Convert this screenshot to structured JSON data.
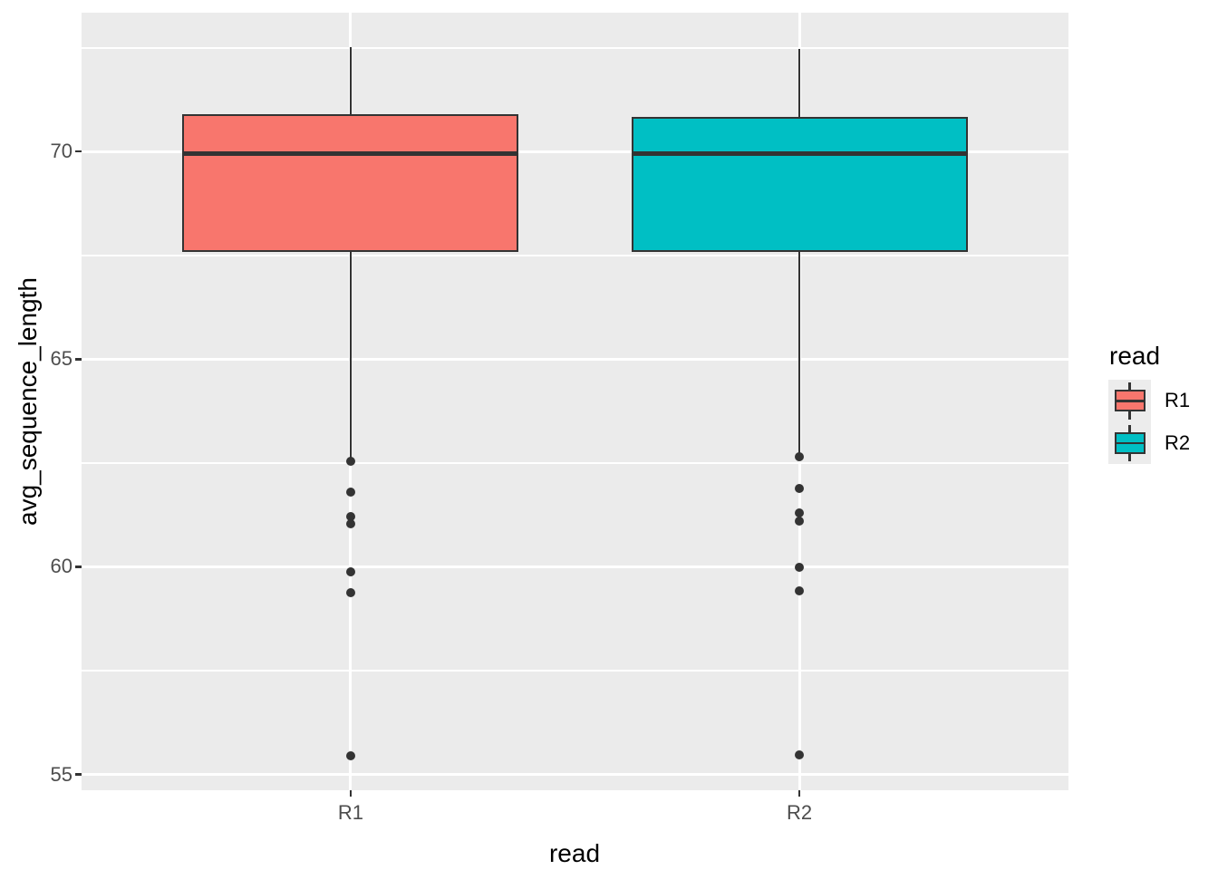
{
  "figure": {
    "background": "#FFFFFF",
    "panel_background": "#EBEBEB",
    "gridline_color": "#FFFFFF",
    "box_border_color": "#333333",
    "tick_label_color": "#4D4D4D",
    "title_color": "#000000"
  },
  "chart_data": {
    "type": "boxplot",
    "title": "",
    "xlabel": "read",
    "ylabel": "avg_sequence_length",
    "categories": [
      "R1",
      "R2"
    ],
    "y_tick_values": [
      70,
      65,
      60,
      55
    ],
    "y_tick_labels": [
      "70",
      "65",
      "60",
      "55"
    ],
    "y_minor_gridlines": [
      72.5,
      67.5,
      62.5,
      57.5
    ],
    "ylim": [
      54.62,
      73.34
    ],
    "grid": true,
    "legend": {
      "title": "read",
      "position": "right",
      "entries": [
        {
          "label": "R1",
          "color": "#F8766D"
        },
        {
          "label": "R2",
          "color": "#00BFC4"
        }
      ]
    },
    "series": [
      {
        "name": "R1",
        "color": "#F8766D",
        "whisker_low": 62.63,
        "q1": 67.57,
        "median": 69.95,
        "q3": 70.89,
        "whisker_high": 72.52,
        "outliers": [
          62.55,
          61.79,
          61.22,
          61.03,
          59.87,
          59.37,
          55.46
        ]
      },
      {
        "name": "R2",
        "color": "#00BFC4",
        "whisker_low": 62.67,
        "q1": 67.57,
        "median": 69.95,
        "q3": 70.84,
        "whisker_high": 72.47,
        "outliers": [
          62.66,
          61.88,
          61.29,
          61.11,
          59.98,
          59.43,
          55.48
        ]
      }
    ]
  }
}
